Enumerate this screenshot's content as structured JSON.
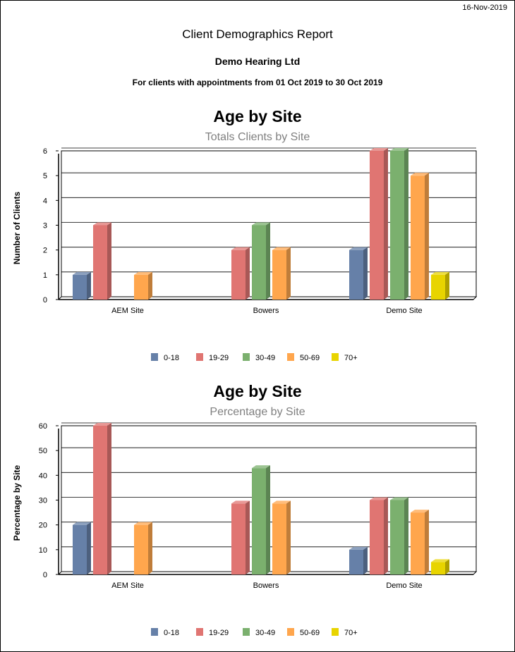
{
  "report": {
    "date": "16-Nov-2019",
    "title": "Client Demographics Report",
    "company": "Demo Hearing Ltd",
    "period": "For clients with appointments from 01 Oct 2019 to 30 Oct 2019"
  },
  "colors": {
    "0-18": "#6680a8",
    "19-29": "#e07572",
    "30-49": "#7bb06e",
    "50-69": "#ffa64d",
    "70+": "#e8d400"
  },
  "chart_data": [
    {
      "type": "bar",
      "title": "Age by Site",
      "subtitle": "Totals Clients by Site",
      "ylabel": "Number of Clients",
      "xlabel": "",
      "ylim": [
        0,
        6
      ],
      "yticks": [
        0,
        1,
        2,
        3,
        4,
        5,
        6
      ],
      "grid": true,
      "legend": "bottom",
      "categories": [
        "AEM Site",
        "Bowers",
        "Demo Site"
      ],
      "series": [
        {
          "name": "0-18",
          "values": [
            1,
            0,
            2
          ]
        },
        {
          "name": "19-29",
          "values": [
            3,
            2,
            6
          ]
        },
        {
          "name": "30-49",
          "values": [
            0,
            3,
            6
          ]
        },
        {
          "name": "50-69",
          "values": [
            1,
            2,
            5
          ]
        },
        {
          "name": "70+",
          "values": [
            0,
            0,
            1
          ]
        }
      ]
    },
    {
      "type": "bar",
      "title": "Age by Site",
      "subtitle": "Percentage by Site",
      "ylabel": "Percentage by Site",
      "xlabel": "",
      "ylim": [
        0,
        60
      ],
      "yticks": [
        0,
        10,
        20,
        30,
        40,
        50,
        60
      ],
      "grid": true,
      "legend": "bottom",
      "categories": [
        "AEM Site",
        "Bowers",
        "Demo Site"
      ],
      "series": [
        {
          "name": "0-18",
          "values": [
            20,
            0,
            10
          ]
        },
        {
          "name": "19-29",
          "values": [
            60,
            28.6,
            30
          ]
        },
        {
          "name": "30-49",
          "values": [
            0,
            42.9,
            30
          ]
        },
        {
          "name": "50-69",
          "values": [
            20,
            28.6,
            25
          ]
        },
        {
          "name": "70+",
          "values": [
            0,
            0,
            5
          ]
        }
      ]
    }
  ]
}
